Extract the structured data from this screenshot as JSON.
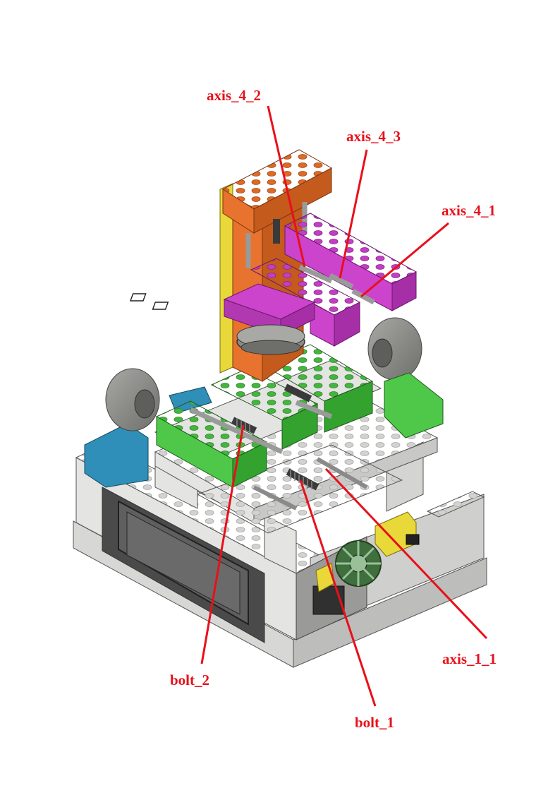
{
  "figure": {
    "label_color": "#e8101a",
    "labels": {
      "axis_4_2": "axis_4_2",
      "axis_4_3": "axis_4_3",
      "axis_4_1": "axis_4_1",
      "axis_1_1": "axis_1_1",
      "bolt_2": "bolt_2",
      "bolt_1": "bolt_1"
    },
    "colors": {
      "white_brick": "#e4e4e2",
      "white_shade": "#c8c8c6",
      "green": "#4fc84a",
      "green_dark": "#33a22f",
      "magenta": "#cc44cc",
      "magenta_dark": "#a62ea6",
      "orange": "#e8732e",
      "orange_dark": "#c45a1c",
      "yellow": "#e8d83a",
      "blue": "#2f8fb8",
      "gray_motor": "#8c8c88",
      "lcd": "#5a5a5a",
      "gear": "#3f6f3c"
    }
  }
}
